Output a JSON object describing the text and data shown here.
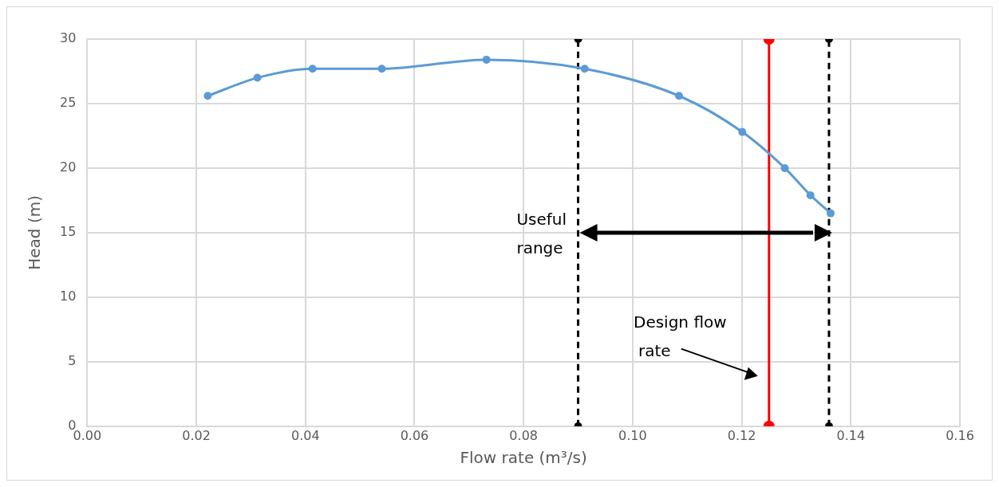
{
  "chart_data": {
    "type": "line",
    "xlabel": "Flow rate (m³/s)",
    "ylabel": "Head (m)",
    "xlim": [
      0,
      0.16
    ],
    "ylim": [
      0,
      30
    ],
    "xticks": [
      {
        "value": 0,
        "label": "0.00"
      },
      {
        "value": 0.02,
        "label": "0.02"
      },
      {
        "value": 0.04,
        "label": "0.04"
      },
      {
        "value": 0.06,
        "label": "0.06"
      },
      {
        "value": 0.08,
        "label": "0.08"
      },
      {
        "value": 0.1,
        "label": "0.10"
      },
      {
        "value": 0.12,
        "label": "0.12"
      },
      {
        "value": 0.14,
        "label": "0.14"
      },
      {
        "value": 0.16,
        "label": "0.16"
      }
    ],
    "yticks": [
      0,
      5,
      10,
      15,
      20,
      25,
      30
    ],
    "grid": true,
    "legend": false,
    "series": [
      {
        "color": "#5b9bd5",
        "marker": "circle",
        "line_style": "solid",
        "x": [
          0.0221,
          0.0312,
          0.0413,
          0.054,
          0.0732,
          0.0912,
          0.1085,
          0.1201,
          0.1279,
          0.1326,
          0.1363
        ],
        "values": [
          25.6,
          27.0,
          27.7,
          27.7,
          28.4,
          27.7,
          25.6,
          22.8,
          20.0,
          17.9,
          16.5
        ]
      },
      {
        "type": "line",
        "color": "#000000",
        "marker": "circle",
        "line_style": "dashed",
        "x": [
          0.09,
          0.09
        ],
        "values": [
          0,
          30
        ]
      },
      {
        "color": "#ff0000",
        "marker": "circle",
        "line_style": "solid",
        "x": [
          0.125,
          0.125
        ],
        "values": [
          0,
          30
        ]
      },
      {
        "type": "line",
        "color": "#000000",
        "marker": "circle",
        "line_style": "dashed",
        "x": [
          0.136,
          0.136
        ],
        "values": [
          0,
          30
        ]
      }
    ],
    "annotations": [
      "Useful range",
      "Design flow rate"
    ]
  }
}
